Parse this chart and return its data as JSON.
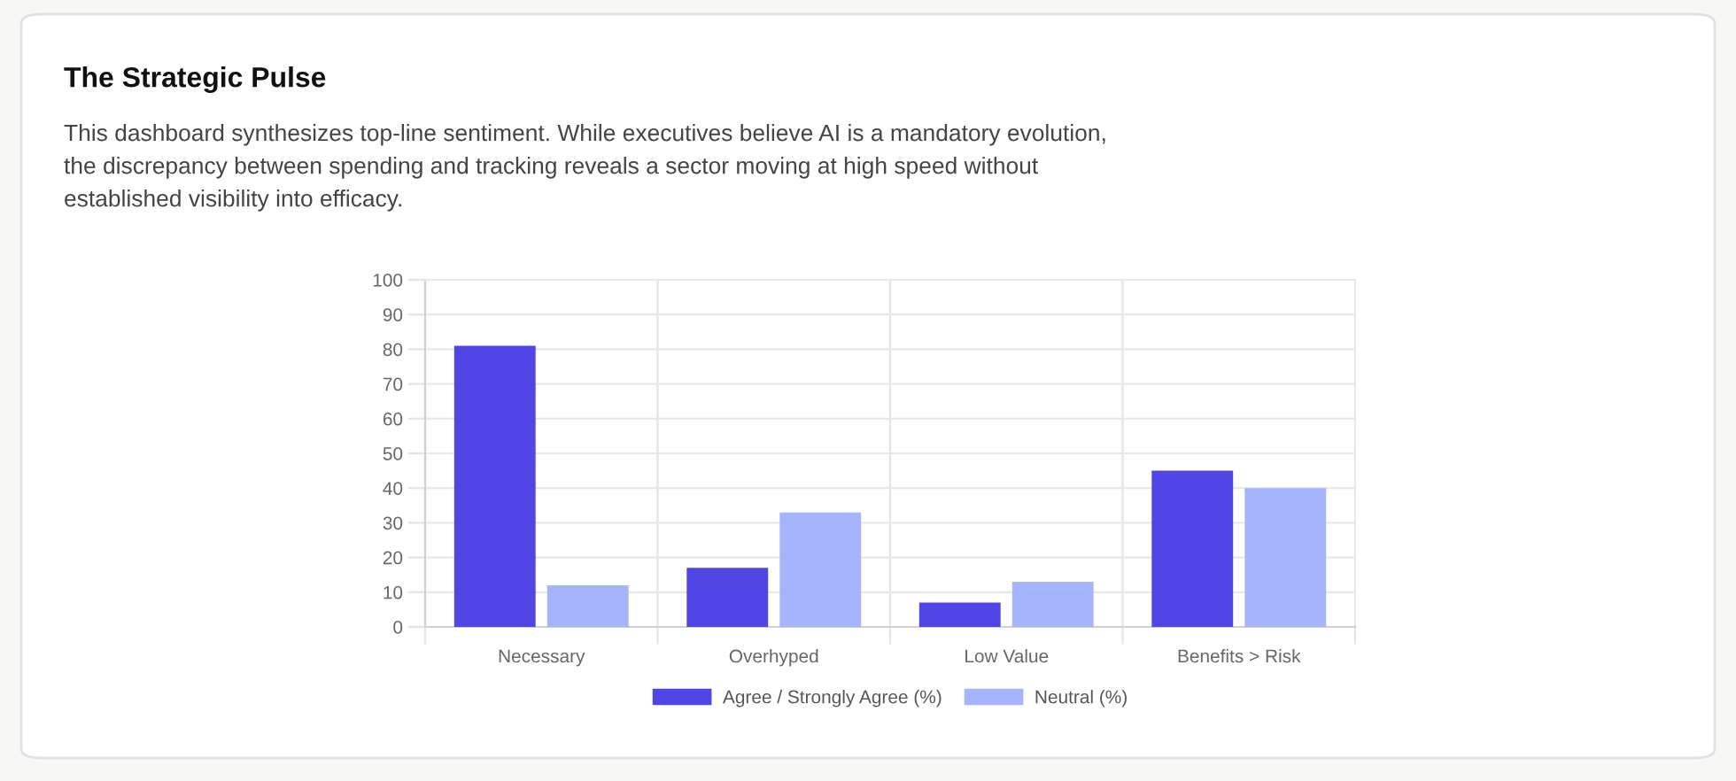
{
  "chart_data": {
    "type": "bar",
    "title": "The Strategic Pulse",
    "subtitle": "This dashboard synthesizes top-line sentiment. While executives believe AI is a mandatory evolution, the discrepancy between spending and tracking reveals a sector moving at high speed without established visibility into efficacy.",
    "categories": [
      "Necessary",
      "Overhyped",
      "Low Value",
      "Benefits > Risk"
    ],
    "series": [
      {
        "name": "Agree / Strongly Agree (%)",
        "color": "#4f46e5",
        "values": [
          81,
          17,
          7,
          45
        ]
      },
      {
        "name": "Neutral (%)",
        "color": "#a5b4fc",
        "values": [
          12,
          33,
          13,
          40
        ]
      }
    ],
    "ylim": [
      0,
      100
    ],
    "yticks": [
      0,
      10,
      20,
      30,
      40,
      50,
      60,
      70,
      80,
      90,
      100
    ],
    "grid": true,
    "legend": "bottom"
  }
}
